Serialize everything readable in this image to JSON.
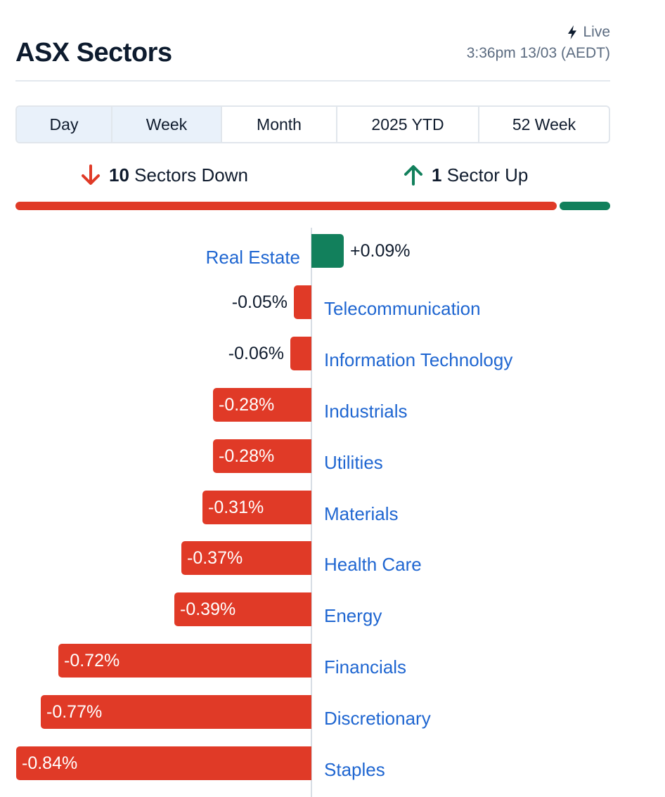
{
  "header": {
    "title": "ASX Sectors",
    "live_label": "Live",
    "timestamp": "3:36pm 13/03 (AEDT)"
  },
  "tabs": [
    {
      "label": "Day",
      "active": true
    },
    {
      "label": "Week",
      "active": true
    },
    {
      "label": "Month",
      "active": false
    },
    {
      "label": "2025 YTD",
      "active": false
    },
    {
      "label": "52 Week",
      "active": false
    }
  ],
  "summary": {
    "down_count": "10",
    "down_label": "Sectors Down",
    "up_count": "1",
    "up_label": "Sector Up"
  },
  "colors": {
    "down": "#e03a27",
    "up": "#12805c",
    "link": "#1f66d1"
  },
  "chart_data": {
    "type": "bar",
    "orientation": "horizontal-diverging",
    "categories": [
      "Real Estate",
      "Telecommunication",
      "Information Technology",
      "Industrials",
      "Utilities",
      "Materials",
      "Health Care",
      "Energy",
      "Financials",
      "Discretionary",
      "Staples"
    ],
    "values": [
      0.09,
      -0.05,
      -0.06,
      -0.28,
      -0.28,
      -0.31,
      -0.37,
      -0.39,
      -0.72,
      -0.77,
      -0.84
    ],
    "value_labels": [
      "+0.09%",
      "-0.05%",
      "-0.06%",
      "-0.28%",
      "-0.28%",
      "-0.31%",
      "-0.37%",
      "-0.39%",
      "-0.72%",
      "-0.77%",
      "-0.84%"
    ],
    "unit": "%",
    "xlim": [
      -0.84,
      0.09
    ]
  }
}
